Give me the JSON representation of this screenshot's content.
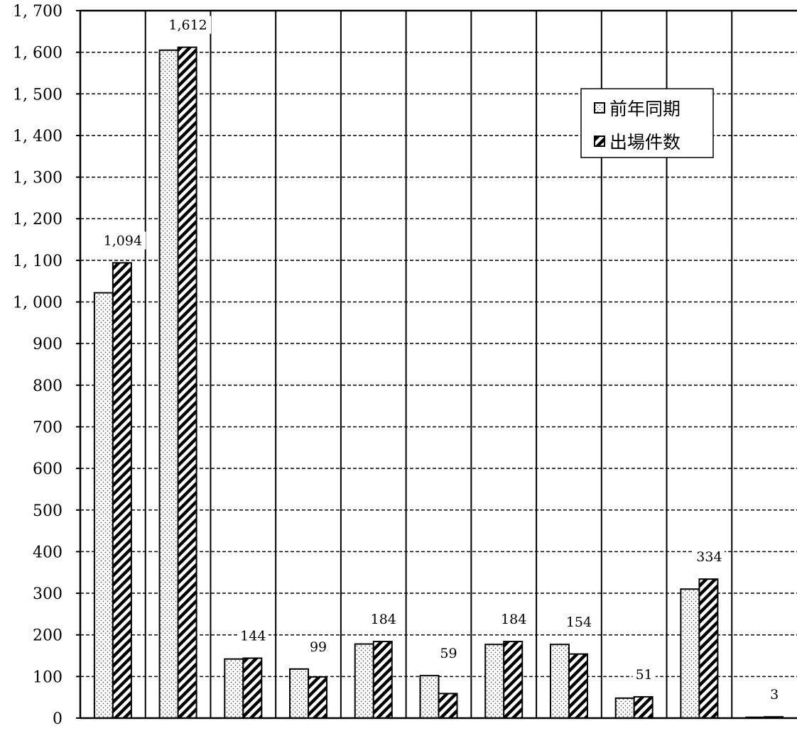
{
  "chart_data": {
    "type": "bar",
    "title": "",
    "xlabel": "",
    "ylabel": "",
    "ylim": [
      0,
      1700
    ],
    "yticks": [
      0,
      100,
      200,
      300,
      400,
      500,
      600,
      700,
      800,
      900,
      1000,
      1100,
      1200,
      1300,
      1400,
      1500,
      1600,
      1700
    ],
    "ytick_labels": [
      "0",
      "100",
      "200",
      "300",
      "400",
      "500",
      "600",
      "700",
      "800",
      "900",
      "1, 000",
      "1, 100",
      "1, 200",
      "1, 300",
      "1, 400",
      "1, 500",
      "1, 600",
      "1, 700"
    ],
    "grid": "horizontal dashed",
    "legend_position": "top-right",
    "category_count": 11,
    "series": [
      {
        "name": "前年同期",
        "pattern": "dotted",
        "values": [
          1022,
          1605,
          142,
          118,
          178,
          102,
          177,
          177,
          48,
          310,
          2
        ]
      },
      {
        "name": "出場件数",
        "pattern": "diagonal-hatch",
        "values": [
          1094,
          1612,
          144,
          99,
          184,
          59,
          184,
          154,
          51,
          334,
          3
        ]
      }
    ],
    "data_labels": [
      "1,094",
      "1,612",
      "144",
      "99",
      "184",
      "59",
      "184",
      "154",
      "51",
      "334",
      "3"
    ]
  },
  "legend": {
    "items": [
      "前年同期",
      "出場件数"
    ]
  }
}
